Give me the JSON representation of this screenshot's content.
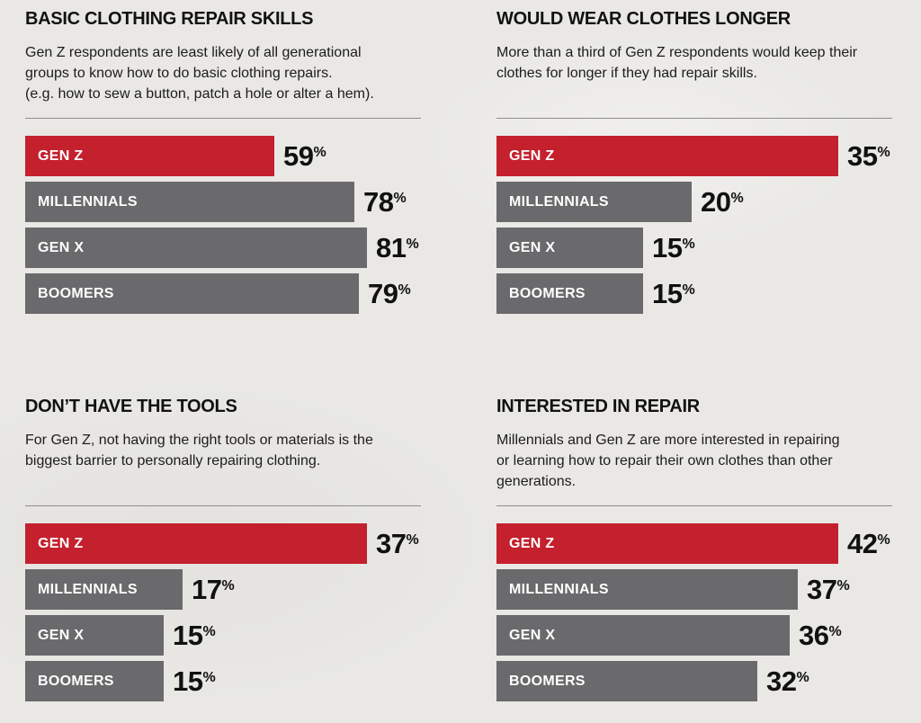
{
  "page": {
    "background_color": "#E9E8E5",
    "accent_red": "#C4202E",
    "bar_grey": "#6A696B",
    "divider_color": "#8E8D8A"
  },
  "chart_data": [
    {
      "type": "bar",
      "orientation": "horizontal",
      "title": "BASIC CLOTHING REPAIR SKILLS",
      "subtitle": "Gen Z respondents are least likely of all generational\ngroups to know how to do basic clothing repairs.\n(e.g. how to sew a button, patch a hole or alter a hem).",
      "categories": [
        "GEN Z",
        "MILLENNIALS",
        "GEN X",
        "BOOMERS"
      ],
      "values": [
        59,
        78,
        81,
        79
      ],
      "unit": "%",
      "value_labels_shown": true,
      "highlight_category": "GEN Z",
      "bar_colors": [
        "#C4202E",
        "#6A696B",
        "#6A696B",
        "#6A696B"
      ],
      "xlim": [
        0,
        81
      ],
      "grid": false,
      "legend": false
    },
    {
      "type": "bar",
      "orientation": "horizontal",
      "title": "WOULD WEAR CLOTHES LONGER",
      "subtitle": "More than a third of Gen Z respondents would keep their\nclothes for longer if they had repair skills.",
      "categories": [
        "GEN Z",
        "MILLENNIALS",
        "GEN X",
        "BOOMERS"
      ],
      "values": [
        35,
        20,
        15,
        15
      ],
      "unit": "%",
      "value_labels_shown": true,
      "highlight_category": "GEN Z",
      "bar_colors": [
        "#C4202E",
        "#6A696B",
        "#6A696B",
        "#6A696B"
      ],
      "xlim": [
        0,
        35
      ],
      "grid": false,
      "legend": false
    },
    {
      "type": "bar",
      "orientation": "horizontal",
      "title": "DON’T HAVE THE TOOLS",
      "subtitle": "For Gen Z, not having the right tools or materials is the\nbiggest barrier to personally repairing clothing.",
      "categories": [
        "GEN Z",
        "MILLENNIALS",
        "GEN X",
        "BOOMERS"
      ],
      "values": [
        37,
        17,
        15,
        15
      ],
      "unit": "%",
      "value_labels_shown": true,
      "highlight_category": "GEN Z",
      "bar_colors": [
        "#C4202E",
        "#6A696B",
        "#6A696B",
        "#6A696B"
      ],
      "xlim": [
        0,
        37
      ],
      "grid": false,
      "legend": false
    },
    {
      "type": "bar",
      "orientation": "horizontal",
      "title": "INTERESTED IN REPAIR",
      "subtitle": "Millennials and Gen Z are more interested in repairing\nor learning how to repair their own clothes than other\ngenerations.",
      "categories": [
        "GEN Z",
        "MILLENNIALS",
        "GEN X",
        "BOOMERS"
      ],
      "values": [
        42,
        37,
        36,
        32
      ],
      "unit": "%",
      "value_labels_shown": true,
      "highlight_category": "GEN Z",
      "bar_colors": [
        "#C4202E",
        "#6A696B",
        "#6A696B",
        "#6A696B"
      ],
      "xlim": [
        0,
        42
      ],
      "grid": false,
      "legend": false
    }
  ]
}
